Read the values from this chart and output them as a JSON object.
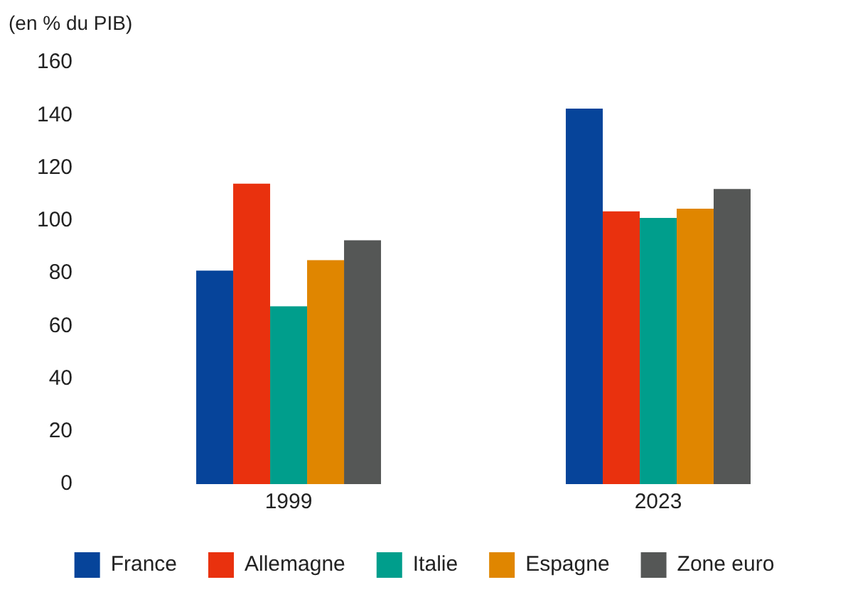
{
  "chart_data": {
    "type": "bar",
    "ylabel": "(en % du PIB)",
    "categories": [
      "1999",
      "2023"
    ],
    "series": [
      {
        "name": "France",
        "color": "#06449a",
        "values": [
          81,
          142.5
        ]
      },
      {
        "name": "Allemagne",
        "color": "#e9310e",
        "values": [
          114,
          103.5
        ]
      },
      {
        "name": "Italie",
        "color": "#009e8c",
        "values": [
          67.5,
          101
        ]
      },
      {
        "name": "Espagne",
        "color": "#e08600",
        "values": [
          85,
          104.5
        ]
      },
      {
        "name": "Zone euro",
        "color": "#555756",
        "values": [
          92.5,
          112
        ]
      }
    ],
    "ylim": [
      0,
      160
    ],
    "yticks": [
      0,
      20,
      40,
      60,
      80,
      100,
      120,
      140,
      160
    ],
    "grid": false,
    "legend": "bottom"
  }
}
